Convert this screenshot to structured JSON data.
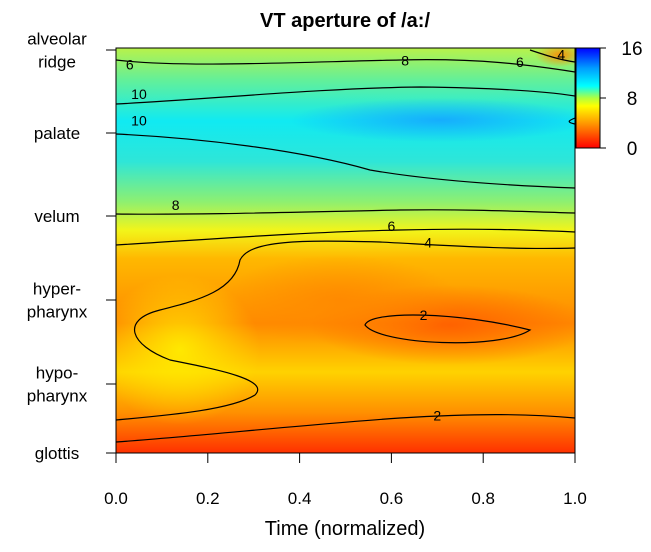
{
  "chart_data": {
    "type": "heatmap",
    "subtype": "filled-contour",
    "title": "VT aperture of /a:/",
    "xlabel": "Time (normalized)",
    "ylabel": "",
    "x_ticks": [
      "0.0",
      "0.2",
      "0.4",
      "0.6",
      "0.8",
      "1.0"
    ],
    "xlim": [
      0,
      1
    ],
    "y_ticks": [
      "glottis",
      "hypo-\npharynx",
      "hyper-\npharynx",
      "velum",
      "palate",
      "alveolar\nridge"
    ],
    "colorbar": {
      "ticks": [
        "16",
        "8",
        "0"
      ],
      "range": [
        0,
        16
      ],
      "colors": [
        "#ff0000",
        "#ffff00",
        "#00ffff",
        "#0000ff"
      ]
    },
    "contour_levels": [
      2,
      4,
      6,
      8,
      10
    ],
    "contour_labels": [
      {
        "level": "4",
        "x": 0.97,
        "y": 4.77
      },
      {
        "level": "6",
        "x": 0.03,
        "y": 4.65
      },
      {
        "level": "8",
        "x": 0.63,
        "y": 4.7
      },
      {
        "level": "6",
        "x": 0.88,
        "y": 4.68
      },
      {
        "level": "10",
        "x": 0.05,
        "y": 4.3
      },
      {
        "level": "10",
        "x": 0.05,
        "y": 3.98
      },
      {
        "level": "8",
        "x": 0.13,
        "y": 2.97
      },
      {
        "level": "6",
        "x": 0.6,
        "y": 2.72
      },
      {
        "level": "4",
        "x": 0.68,
        "y": 2.52
      },
      {
        "level": "2",
        "x": 0.67,
        "y": 1.65
      },
      {
        "level": "2",
        "x": 0.7,
        "y": 0.45
      }
    ],
    "grid": false,
    "legend": "colorbar-right"
  }
}
